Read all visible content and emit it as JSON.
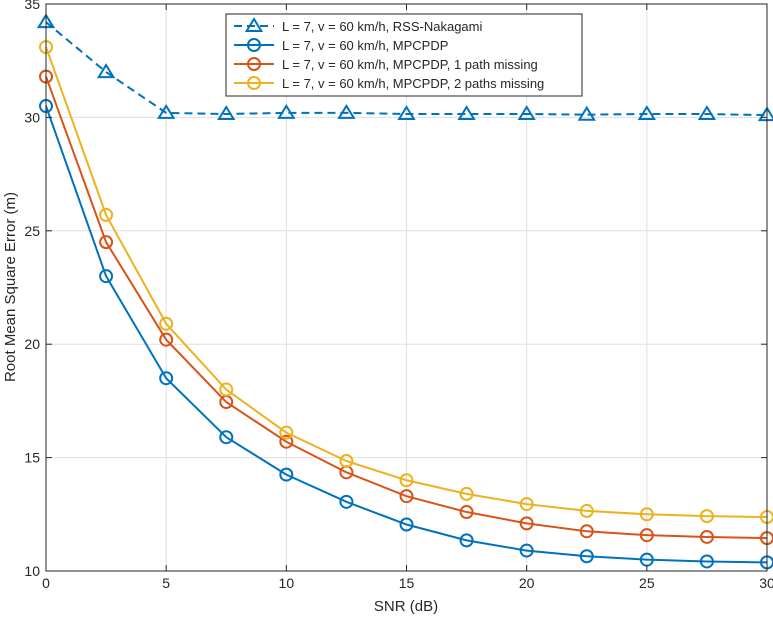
{
  "chart_data": {
    "type": "line",
    "title": "",
    "xlabel": "SNR (dB)",
    "ylabel": "Root Mean Square Error (m)",
    "xlim": [
      0,
      30
    ],
    "ylim": [
      10,
      35
    ],
    "grid": true,
    "legend_position": "top-center",
    "x": [
      0,
      2.5,
      5,
      7.5,
      10,
      12.5,
      15,
      17.5,
      20,
      22.5,
      25,
      27.5,
      30
    ],
    "xticks": [
      "0",
      "5",
      "10",
      "15",
      "20",
      "25",
      "30"
    ],
    "yticks": [
      "10",
      "15",
      "20",
      "25",
      "30",
      "35"
    ],
    "series": [
      {
        "name": "L = 7, v = 60 km/h, RSS-Nakagami",
        "color": "#0072BD",
        "line_style": "dashed",
        "marker": "triangle",
        "values": [
          34.2,
          32.0,
          30.2,
          30.15,
          30.2,
          30.2,
          30.15,
          30.15,
          30.15,
          30.12,
          30.15,
          30.15,
          30.1
        ]
      },
      {
        "name": "L = 7, v = 60 km/h, MPCPDP",
        "color": "#0072BD",
        "line_style": "solid",
        "marker": "circle",
        "values": [
          30.5,
          23.0,
          18.5,
          15.9,
          14.25,
          13.05,
          12.05,
          11.35,
          10.9,
          10.65,
          10.5,
          10.42,
          10.38
        ]
      },
      {
        "name": "L = 7, v = 60 km/h, MPCPDP, 1 path missing",
        "color": "#D95319",
        "line_style": "solid",
        "marker": "circle",
        "values": [
          31.8,
          24.5,
          20.2,
          17.45,
          15.7,
          14.35,
          13.3,
          12.6,
          12.1,
          11.75,
          11.58,
          11.5,
          11.45
        ]
      },
      {
        "name": "L = 7, v = 60 km/h, MPCPDP, 2 paths missing",
        "color": "#EDB120",
        "line_style": "solid",
        "marker": "circle",
        "values": [
          33.1,
          25.7,
          20.9,
          18.0,
          16.1,
          14.85,
          14.0,
          13.4,
          12.95,
          12.65,
          12.5,
          12.42,
          12.38
        ]
      }
    ]
  }
}
